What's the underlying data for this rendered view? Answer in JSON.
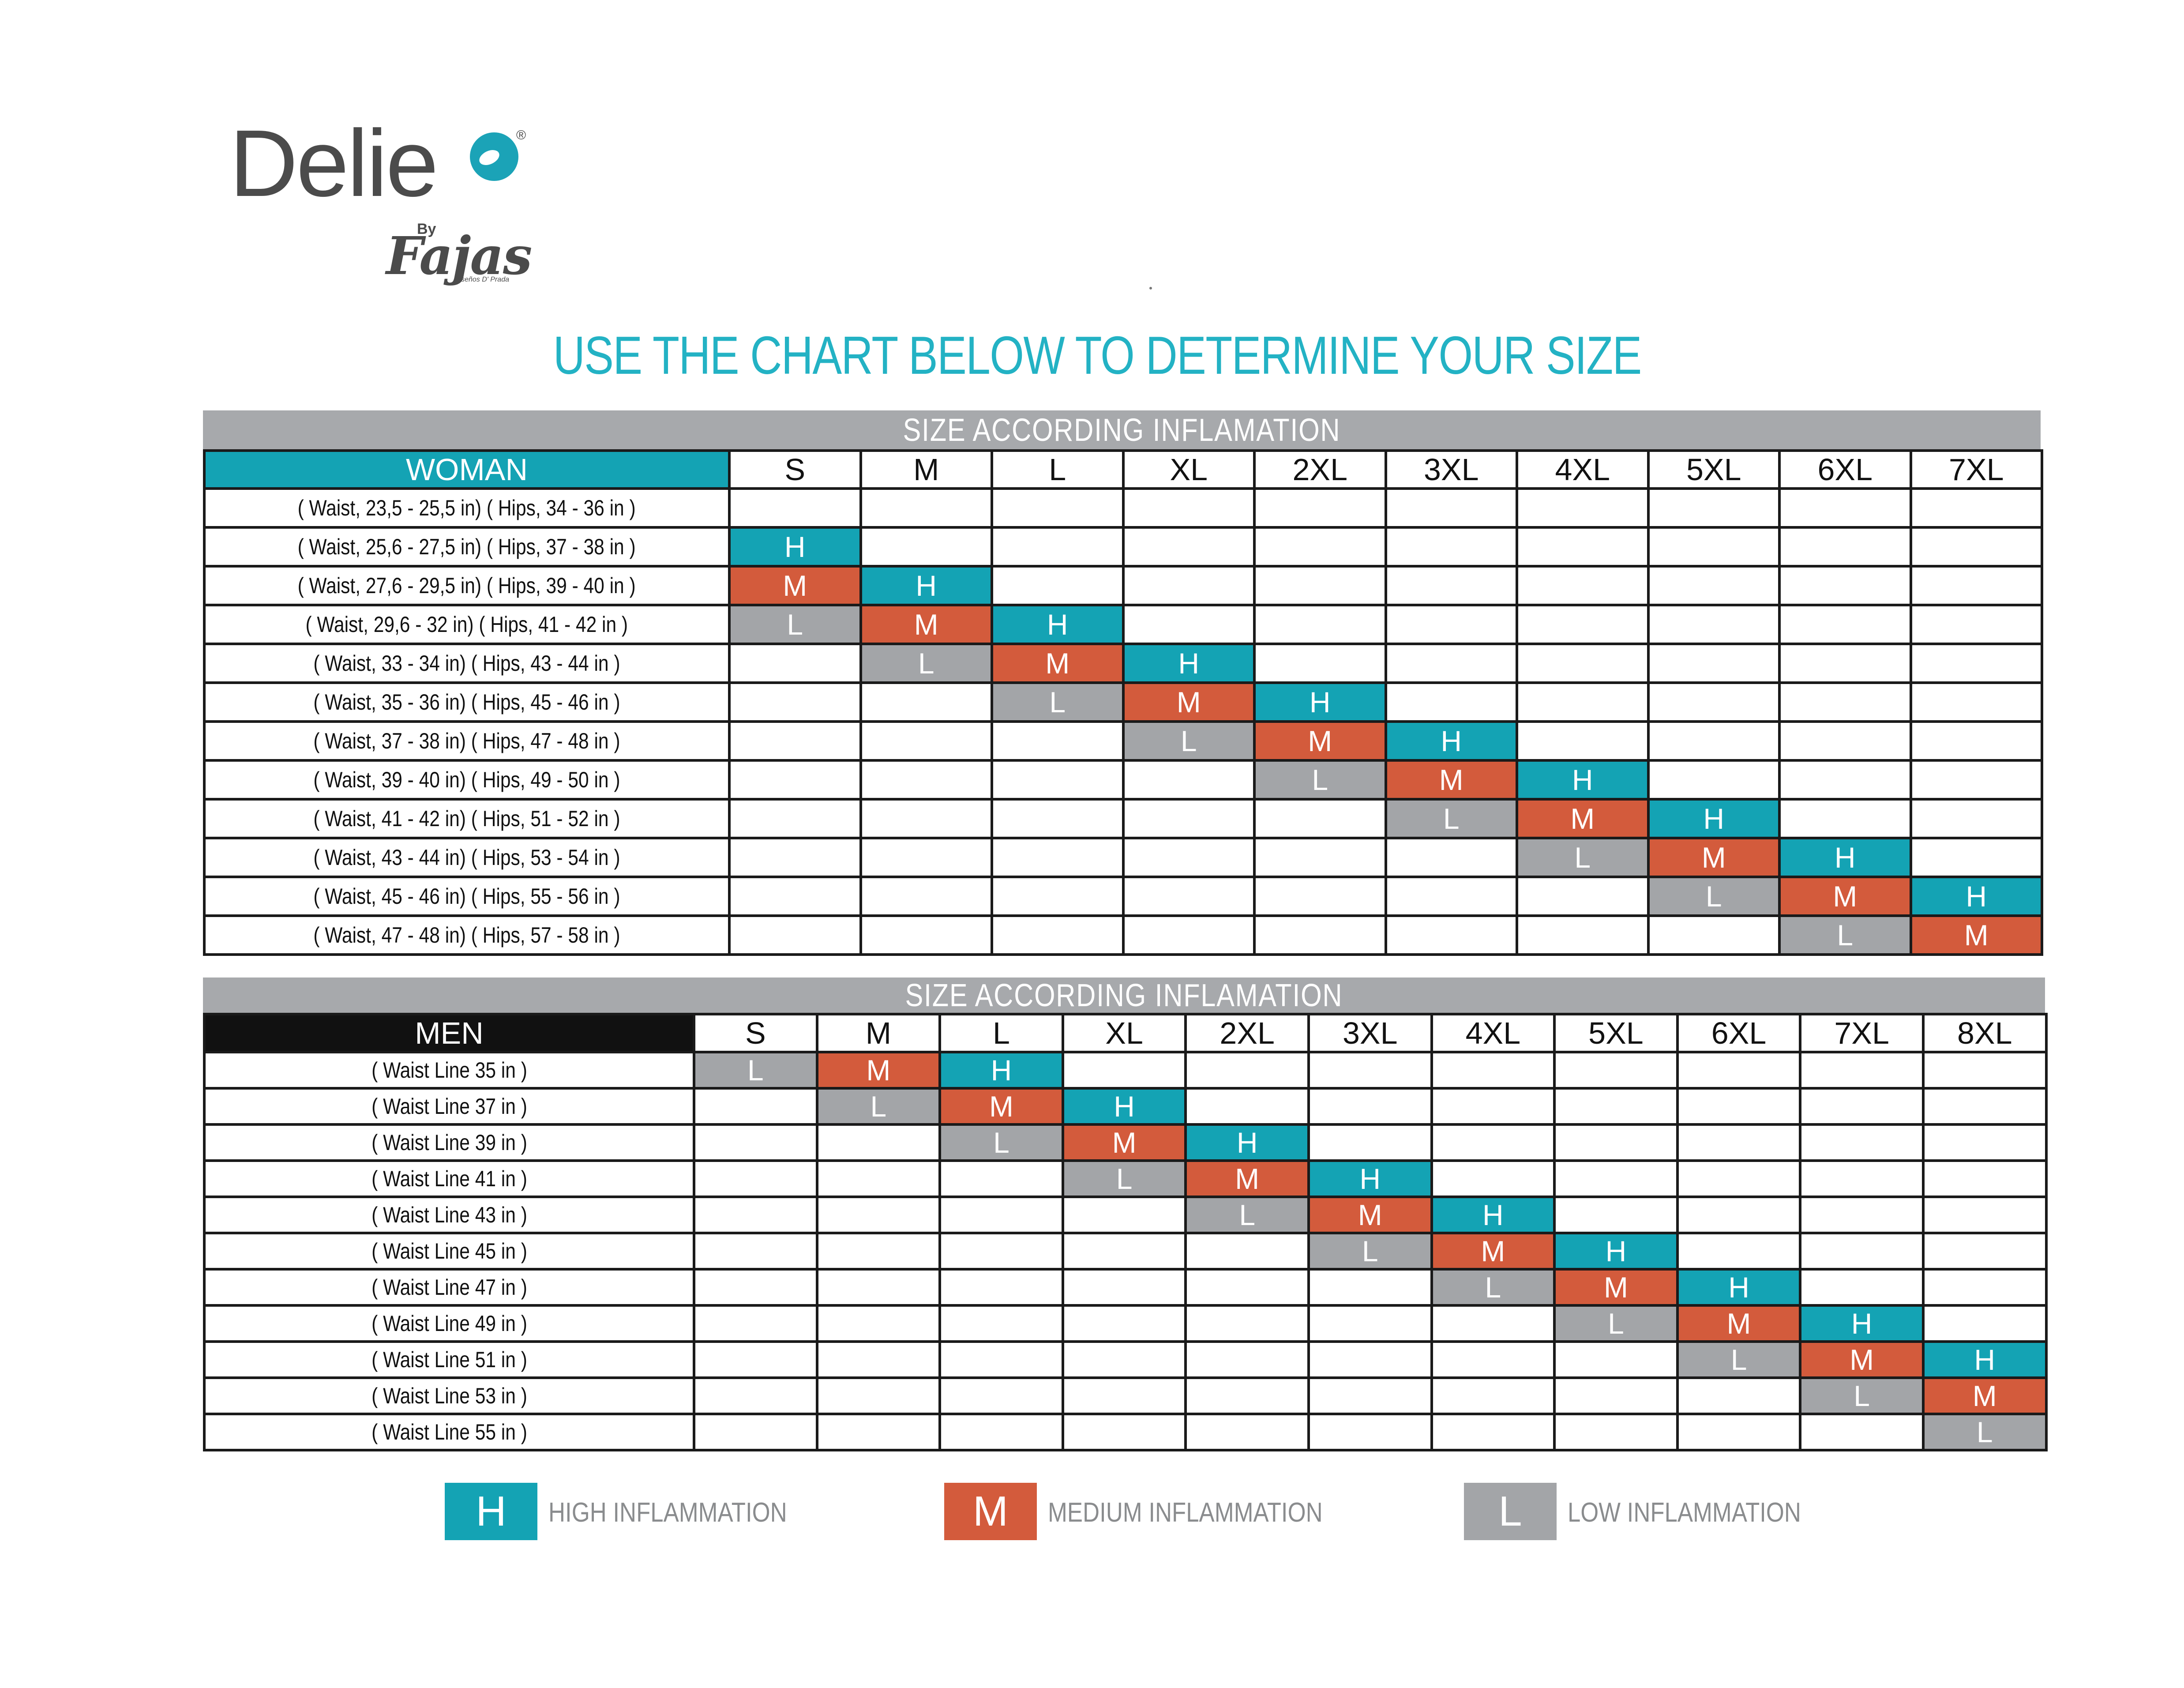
{
  "brand": {
    "name": "Delie",
    "registered_mark": "®",
    "by": "By",
    "sub_brand": "Fajas",
    "tagline": "Diseños D' Prada"
  },
  "title": "USE THE CHART BELOW TO DETERMINE YOUR SIZE",
  "colors": {
    "high": "#14a3b4",
    "medium": "#d35b3c",
    "low": "#a3a5a8",
    "header": "#a7a9ac",
    "title": "#23b2c4"
  },
  "woman": {
    "header": "SIZE  ACCORDING  INFLAMATION",
    "group_label": "WOMAN",
    "sizes": [
      "S",
      "M",
      "L",
      "XL",
      "2XL",
      "3XL",
      "4XL",
      "5XL",
      "6XL",
      "7XL"
    ],
    "rows": [
      {
        "label": "( Waist, 23,5 - 25,5 in)  ( Hips, 34 - 36 in )",
        "cells": [
          "",
          "",
          "",
          "",
          "",
          "",
          "",
          "",
          "",
          ""
        ]
      },
      {
        "label": "( Waist, 25,6 - 27,5 in)  ( Hips, 37 - 38 in )",
        "cells": [
          "H",
          "",
          "",
          "",
          "",
          "",
          "",
          "",
          "",
          ""
        ]
      },
      {
        "label": "( Waist, 27,6 - 29,5 in)  ( Hips, 39 - 40 in )",
        "cells": [
          "M",
          "H",
          "",
          "",
          "",
          "",
          "",
          "",
          "",
          ""
        ]
      },
      {
        "label": "( Waist, 29,6 - 32    in)  ( Hips, 41 - 42 in )",
        "cells": [
          "L",
          "M",
          "H",
          "",
          "",
          "",
          "",
          "",
          "",
          ""
        ]
      },
      {
        "label": "( Waist, 33  -  34    in)  ( Hips, 43 - 44 in )",
        "cells": [
          "",
          "L",
          "M",
          "H",
          "",
          "",
          "",
          "",
          "",
          ""
        ]
      },
      {
        "label": "( Waist, 35  -  36    in)  ( Hips, 45 - 46 in )",
        "cells": [
          "",
          "",
          "L",
          "M",
          "H",
          "",
          "",
          "",
          "",
          ""
        ]
      },
      {
        "label": "( Waist, 37  -  38    in)  ( Hips, 47 - 48 in )",
        "cells": [
          "",
          "",
          "",
          "L",
          "M",
          "H",
          "",
          "",
          "",
          ""
        ]
      },
      {
        "label": "( Waist, 39  -  40    in)  ( Hips, 49 - 50 in )",
        "cells": [
          "",
          "",
          "",
          "",
          "L",
          "M",
          "H",
          "",
          "",
          ""
        ]
      },
      {
        "label": "( Waist, 41  -  42    in)  ( Hips, 51 - 52 in )",
        "cells": [
          "",
          "",
          "",
          "",
          "",
          "L",
          "M",
          "H",
          "",
          ""
        ]
      },
      {
        "label": "( Waist, 43  -  44    in)  ( Hips, 53 - 54 in )",
        "cells": [
          "",
          "",
          "",
          "",
          "",
          "",
          "L",
          "M",
          "H",
          ""
        ]
      },
      {
        "label": "( Waist, 45  -  46    in)  ( Hips, 55 - 56 in )",
        "cells": [
          "",
          "",
          "",
          "",
          "",
          "",
          "",
          "L",
          "M",
          "H"
        ]
      },
      {
        "label": "( Waist, 47  -  48    in)  ( Hips, 57 - 58 in )",
        "cells": [
          "",
          "",
          "",
          "",
          "",
          "",
          "",
          "",
          "L",
          "M"
        ]
      }
    ]
  },
  "men": {
    "header": "SIZE  ACCORDING  INFLAMATION",
    "group_label": "MEN",
    "sizes": [
      "S",
      "M",
      "L",
      "XL",
      "2XL",
      "3XL",
      "4XL",
      "5XL",
      "6XL",
      "7XL",
      "8XL"
    ],
    "rows": [
      {
        "label": "( Waist Line  35 in )",
        "cells": [
          "L",
          "M",
          "H",
          "",
          "",
          "",
          "",
          "",
          "",
          "",
          ""
        ]
      },
      {
        "label": "( Waist Line  37 in )",
        "cells": [
          "",
          "L",
          "M",
          "H",
          "",
          "",
          "",
          "",
          "",
          "",
          ""
        ]
      },
      {
        "label": "( Waist Line  39 in )",
        "cells": [
          "",
          "",
          "L",
          "M",
          "H",
          "",
          "",
          "",
          "",
          "",
          ""
        ]
      },
      {
        "label": "( Waist Line  41 in )",
        "cells": [
          "",
          "",
          "",
          "L",
          "M",
          "H",
          "",
          "",
          "",
          "",
          ""
        ]
      },
      {
        "label": "( Waist Line  43 in )",
        "cells": [
          "",
          "",
          "",
          "",
          "L",
          "M",
          "H",
          "",
          "",
          "",
          ""
        ]
      },
      {
        "label": "( Waist Line  45 in )",
        "cells": [
          "",
          "",
          "",
          "",
          "",
          "L",
          "M",
          "H",
          "",
          "",
          ""
        ]
      },
      {
        "label": "( Waist Line  47 in )",
        "cells": [
          "",
          "",
          "",
          "",
          "",
          "",
          "L",
          "M",
          "H",
          "",
          ""
        ]
      },
      {
        "label": "( Waist Line  49 in )",
        "cells": [
          "",
          "",
          "",
          "",
          "",
          "",
          "",
          "L",
          "M",
          "H",
          ""
        ]
      },
      {
        "label": "( Waist Line  51 in )",
        "cells": [
          "",
          "",
          "",
          "",
          "",
          "",
          "",
          "",
          "L",
          "M",
          "H"
        ]
      },
      {
        "label": "( Waist Line  53 in )",
        "cells": [
          "",
          "",
          "",
          "",
          "",
          "",
          "",
          "",
          "",
          "L",
          "M"
        ]
      },
      {
        "label": "( Waist Line  55 in )",
        "cells": [
          "",
          "",
          "",
          "",
          "",
          "",
          "",
          "",
          "",
          "",
          "L"
        ]
      }
    ]
  },
  "legend": [
    {
      "code": "H",
      "label": "HIGH INFLAMMATION"
    },
    {
      "code": "M",
      "label": "MEDIUM INFLAMMATION"
    },
    {
      "code": "L",
      "label": "LOW INFLAMMATION"
    }
  ]
}
